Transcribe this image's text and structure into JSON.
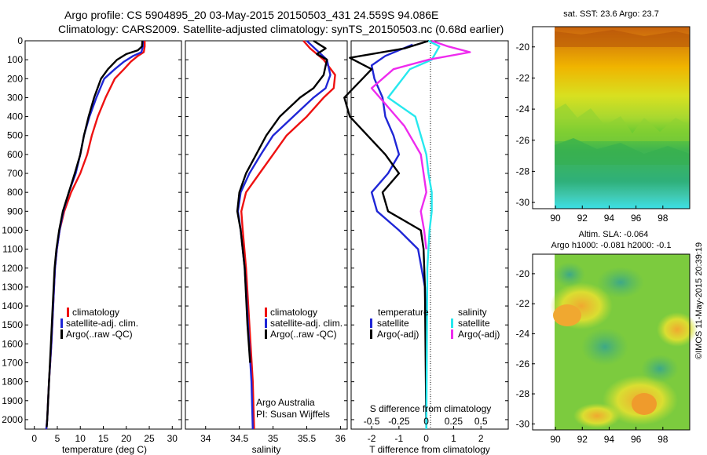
{
  "header": {
    "title_line1": "Argo profile: CS 5904895_20 03-May-2015 20150503_431 24.559S 94.086E",
    "title_line2": "Climatology: CARS2009. Satellite-adjusted climatology: synTS_20150503.nc (0.68d earlier)"
  },
  "colors": {
    "climatology": "#ee1111",
    "satellite": "#1f26d6",
    "argo": "#000000",
    "satellite_diff": "#26e8ee",
    "argo_diff": "#ee2bee"
  },
  "watermark": "©IMOS 11-May-2015 20:39:19",
  "chart_data": [
    {
      "type": "line",
      "id": "temperature",
      "xlabel": "temperature (deg C)",
      "ylabel": "",
      "xlim": [
        -2,
        32
      ],
      "ylim": [
        0,
        2050
      ],
      "xticks": [
        "0",
        "5",
        "10",
        "15",
        "20",
        "25",
        "30"
      ],
      "yticks": [
        "0",
        "100",
        "200",
        "300",
        "400",
        "500",
        "600",
        "700",
        "800",
        "900",
        "1000",
        "1100",
        "1200",
        "1300",
        "1400",
        "1500",
        "1600",
        "1700",
        "1800",
        "1900",
        "2000"
      ],
      "legend": [
        "climatology",
        "satellite-adj. clim.",
        "Argo(..raw -QC)"
      ],
      "series": [
        {
          "name": "climatology",
          "points": [
            [
              24.0,
              0
            ],
            [
              24.0,
              30
            ],
            [
              23.8,
              60
            ],
            [
              22.5,
              80
            ],
            [
              21.0,
              110
            ],
            [
              19.5,
              150
            ],
            [
              17.5,
              200
            ],
            [
              15.5,
              300
            ],
            [
              13.8,
              400
            ],
            [
              12.5,
              500
            ],
            [
              11.5,
              600
            ],
            [
              10.0,
              700
            ],
            [
              8.0,
              800
            ],
            [
              6.5,
              900
            ],
            [
              5.5,
              1000
            ],
            [
              4.9,
              1100
            ],
            [
              4.5,
              1200
            ],
            [
              4.1,
              1400
            ],
            [
              3.7,
              1600
            ],
            [
              3.2,
              1800
            ],
            [
              2.8,
              2000
            ],
            [
              2.6,
              2050
            ]
          ]
        },
        {
          "name": "satellite-adj. clim.",
          "points": [
            [
              23.6,
              0
            ],
            [
              23.6,
              30
            ],
            [
              23.3,
              60
            ],
            [
              21.5,
              80
            ],
            [
              19.5,
              110
            ],
            [
              17.5,
              150
            ],
            [
              15.2,
              200
            ],
            [
              13.5,
              300
            ],
            [
              12.0,
              400
            ],
            [
              10.8,
              500
            ],
            [
              10.0,
              600
            ],
            [
              9.0,
              700
            ],
            [
              7.5,
              800
            ],
            [
              6.3,
              900
            ],
            [
              5.5,
              1000
            ],
            [
              4.9,
              1100
            ],
            [
              4.5,
              1200
            ],
            [
              4.1,
              1400
            ],
            [
              3.7,
              1600
            ],
            [
              3.2,
              1800
            ],
            [
              2.8,
              2000
            ],
            [
              2.6,
              2050
            ]
          ]
        },
        {
          "name": "Argo(..raw -QC)",
          "points": [
            [
              23.5,
              0
            ],
            [
              23.4,
              30
            ],
            [
              22.5,
              50
            ],
            [
              20.0,
              70
            ],
            [
              18.0,
              100
            ],
            [
              16.0,
              150
            ],
            [
              14.5,
              200
            ],
            [
              13.0,
              300
            ],
            [
              11.8,
              400
            ],
            [
              10.8,
              500
            ],
            [
              10.0,
              600
            ],
            [
              8.8,
              700
            ],
            [
              7.5,
              800
            ],
            [
              6.2,
              900
            ],
            [
              5.4,
              1000
            ],
            [
              4.8,
              1100
            ],
            [
              4.4,
              1200
            ],
            [
              4.0,
              1400
            ],
            [
              3.6,
              1600
            ],
            [
              3.2,
              1800
            ],
            [
              2.8,
              2000
            ],
            [
              2.7,
              2040
            ]
          ]
        }
      ]
    },
    {
      "type": "line",
      "id": "salinity",
      "xlabel": "salinity",
      "xlim": [
        33.7,
        36.1
      ],
      "ylim": [
        0,
        2050
      ],
      "xticks": [
        "34",
        "34.5",
        "35",
        "35.5",
        "36"
      ],
      "legend": [
        "climatology",
        "satellite-adj. clim.",
        "Argo(..raw -QC)"
      ],
      "annotations": [
        "Argo Australia",
        "PI: Susan Wijffels"
      ],
      "series": [
        {
          "name": "climatology",
          "points": [
            [
              35.45,
              0
            ],
            [
              35.55,
              40
            ],
            [
              35.75,
              100
            ],
            [
              35.92,
              180
            ],
            [
              35.9,
              250
            ],
            [
              35.75,
              300
            ],
            [
              35.5,
              400
            ],
            [
              35.2,
              500
            ],
            [
              35.0,
              600
            ],
            [
              34.8,
              700
            ],
            [
              34.6,
              800
            ],
            [
              34.53,
              900
            ],
            [
              34.55,
              1000
            ],
            [
              34.6,
              1200
            ],
            [
              34.65,
              1500
            ],
            [
              34.7,
              1800
            ],
            [
              34.72,
              2050
            ]
          ]
        },
        {
          "name": "satellite-adj. clim.",
          "points": [
            [
              35.5,
              0
            ],
            [
              35.62,
              40
            ],
            [
              35.8,
              100
            ],
            [
              35.85,
              180
            ],
            [
              35.78,
              250
            ],
            [
              35.6,
              300
            ],
            [
              35.3,
              400
            ],
            [
              35.0,
              500
            ],
            [
              34.82,
              600
            ],
            [
              34.65,
              700
            ],
            [
              34.52,
              800
            ],
            [
              34.48,
              900
            ],
            [
              34.52,
              1000
            ],
            [
              34.58,
              1200
            ],
            [
              34.63,
              1500
            ],
            [
              34.68,
              1800
            ],
            [
              34.7,
              2050
            ]
          ]
        },
        {
          "name": "Argo(..raw -QC)",
          "points": [
            [
              35.6,
              0
            ],
            [
              35.78,
              40
            ],
            [
              35.65,
              70
            ],
            [
              35.8,
              100
            ],
            [
              35.75,
              180
            ],
            [
              35.6,
              250
            ],
            [
              35.4,
              300
            ],
            [
              35.1,
              400
            ],
            [
              34.9,
              500
            ],
            [
              34.75,
              600
            ],
            [
              34.6,
              700
            ],
            [
              34.5,
              800
            ],
            [
              34.47,
              900
            ],
            [
              34.52,
              1000
            ],
            [
              34.58,
              1200
            ],
            [
              34.62,
              1500
            ],
            [
              34.66,
              1700
            ]
          ]
        }
      ]
    },
    {
      "type": "line",
      "id": "difference",
      "xlabel": "T difference from climatology",
      "xlabel_top": "S difference from climatology",
      "xlim": [
        -2.75,
        3.0
      ],
      "ylim": [
        0,
        2050
      ],
      "xticks_T": [
        "-2",
        "-1",
        "0",
        "1",
        "2"
      ],
      "xticks_S": [
        "-0.5",
        "-0.25",
        "0",
        "0.25",
        "0.5"
      ],
      "legend": {
        "temperature_header": "temperature",
        "salinity_header": "salinity",
        "entries": [
          "satellite",
          "Argo(-adj)",
          "satellite",
          "Argo(-adj)"
        ]
      },
      "series": [
        {
          "name": "T satellite",
          "points": [
            [
              -0.5,
              20
            ],
            [
              -1.5,
              80
            ],
            [
              -2.0,
              130
            ],
            [
              -1.9,
              200
            ],
            [
              -1.6,
              300
            ],
            [
              -1.5,
              400
            ],
            [
              -1.2,
              500
            ],
            [
              -1.0,
              600
            ],
            [
              -1.4,
              700
            ],
            [
              -2.0,
              800
            ],
            [
              -1.8,
              900
            ],
            [
              -1.0,
              1000
            ],
            [
              -0.3,
              1100
            ],
            [
              -0.05,
              1300
            ],
            [
              -0.02,
              1500
            ],
            [
              0,
              2050
            ]
          ]
        },
        {
          "name": "T Argo(-adj)",
          "points": [
            [
              0.1,
              0
            ],
            [
              -0.8,
              40
            ],
            [
              -2.8,
              90
            ],
            [
              -2.0,
              150
            ],
            [
              -3.0,
              300
            ],
            [
              -2.8,
              400
            ],
            [
              -1.5,
              600
            ],
            [
              -1.0,
              700
            ],
            [
              -1.6,
              800
            ],
            [
              -1.4,
              900
            ],
            [
              -0.2,
              1000
            ],
            [
              -0.1,
              1100
            ],
            [
              -0.05,
              1300
            ],
            [
              0,
              2050
            ]
          ]
        },
        {
          "name": "S satellite",
          "points": [
            [
              0.02,
              0
            ],
            [
              0.12,
              30
            ],
            [
              0.05,
              100
            ],
            [
              -0.15,
              150
            ],
            [
              -0.35,
              300
            ],
            [
              -0.1,
              400
            ],
            [
              -0.05,
              500
            ],
            [
              0,
              600
            ],
            [
              0.02,
              700
            ],
            [
              0.05,
              800
            ],
            [
              0.05,
              900
            ],
            [
              0.03,
              1000
            ],
            [
              0.01,
              1200
            ],
            [
              0,
              2050
            ]
          ]
        },
        {
          "name": "S Argo(-adj)",
          "points": [
            [
              0.05,
              0
            ],
            [
              0.2,
              30
            ],
            [
              0.4,
              60
            ],
            [
              0.02,
              100
            ],
            [
              -0.3,
              150
            ],
            [
              -0.5,
              250
            ],
            [
              -0.35,
              350
            ],
            [
              -0.2,
              450
            ],
            [
              -0.05,
              600
            ],
            [
              0.0,
              800
            ],
            [
              -0.05,
              900
            ],
            [
              -0.02,
              1000
            ],
            [
              0,
              1100
            ]
          ]
        }
      ]
    },
    {
      "type": "heatmap",
      "id": "sst_map",
      "title": "sat. SST: 23.6  Argo: 23.7",
      "xticks": [
        "90",
        "92",
        "94",
        "96",
        "98"
      ],
      "yticks": [
        "-20",
        "-22",
        "-24",
        "-26",
        "-28",
        "-30"
      ]
    },
    {
      "type": "heatmap",
      "id": "sla_map",
      "title_line1": "Altim. SLA: -0.064",
      "title_line2": "Argo h1000: -0.081 h2000: -0.1",
      "xticks": [
        "90",
        "92",
        "94",
        "96",
        "98"
      ],
      "yticks": [
        "-20",
        "-22",
        "-24",
        "-26",
        "-28",
        "-30"
      ]
    }
  ]
}
